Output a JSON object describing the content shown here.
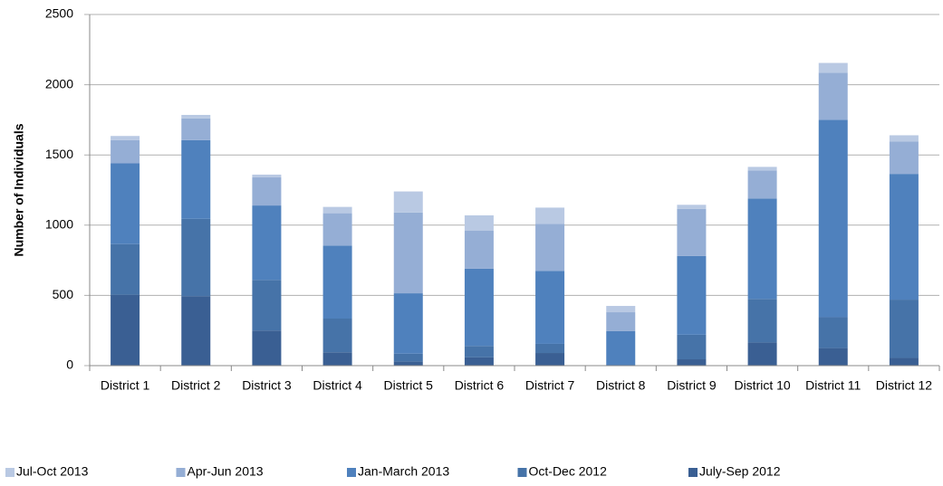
{
  "chart_data": {
    "type": "stacked_bar",
    "y_label": "Number of Individuals",
    "categories": [
      "District 1",
      "District 2",
      "District 3",
      "District 4",
      "District 5",
      "District 6",
      "District 7",
      "District 8",
      "District 9",
      "District 10",
      "District 11",
      "District 12"
    ],
    "series": [
      {
        "name": "July-Sep 2012",
        "color": "#3a5f93",
        "values": [
          505,
          495,
          250,
          95,
          30,
          60,
          90,
          0,
          45,
          165,
          125,
          55
        ]
      },
      {
        "name": "Oct-Dec 2012",
        "color": "#4673a8",
        "values": [
          360,
          550,
          360,
          240,
          55,
          80,
          65,
          0,
          175,
          310,
          220,
          415
        ]
      },
      {
        "name": "Jan-March 2013",
        "color": "#4f81bd",
        "values": [
          575,
          560,
          530,
          520,
          430,
          550,
          520,
          245,
          560,
          715,
          1405,
          895
        ]
      },
      {
        "name": "Apr-Jun 2013",
        "color": "#95aed5",
        "values": [
          165,
          155,
          200,
          230,
          575,
          270,
          335,
          135,
          335,
          200,
          335,
          230
        ]
      },
      {
        "name": "Jul-Oct 2013",
        "color": "#b9c9e3",
        "values": [
          30,
          25,
          20,
          45,
          150,
          110,
          115,
          45,
          30,
          25,
          70,
          45
        ]
      }
    ],
    "ylim": [
      0,
      2500
    ],
    "yticks": [
      0,
      500,
      1000,
      1500,
      2000,
      2500
    ],
    "grid": true,
    "legend": "bottom"
  }
}
